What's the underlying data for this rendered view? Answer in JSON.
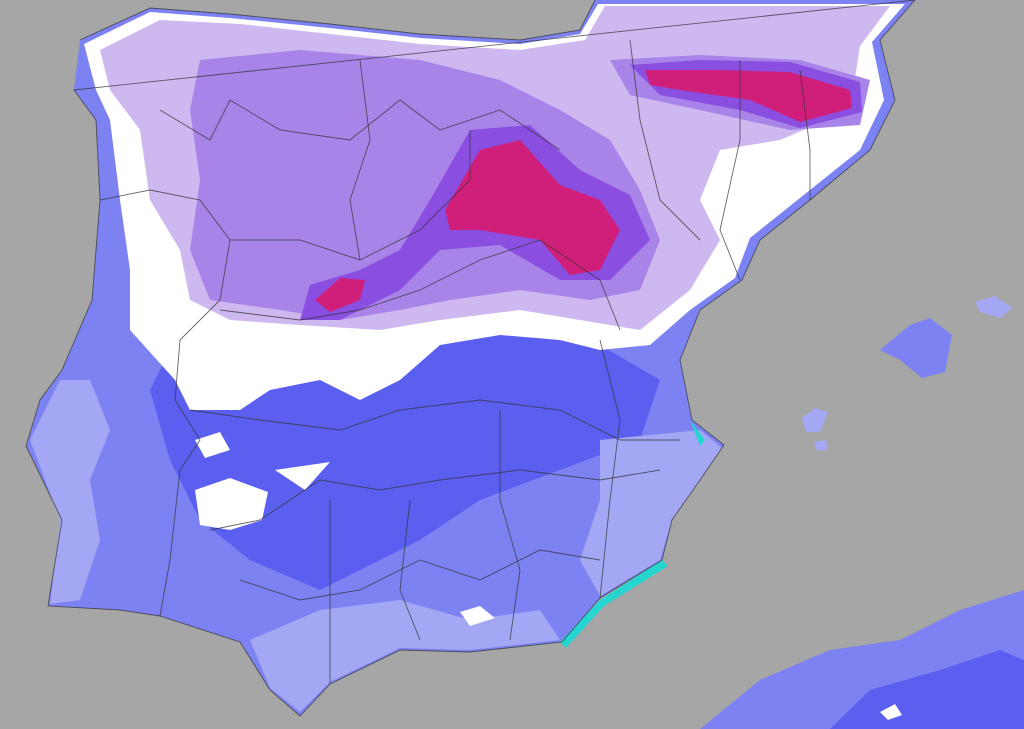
{
  "map": {
    "colors": {
      "sea": "#a6a6a6",
      "coldest_band": "#cf1f7a",
      "very_cold": "#8a4fe0",
      "cold_purple": "#a883e8",
      "lavender": "#cdb8f0",
      "near_zero": "#ffffff",
      "blue_dark": "#5a5ff0",
      "blue_mid": "#7c82f2",
      "blue_light": "#a3a7f4",
      "coast_cyan": "#25d6d0",
      "borders": "#333333"
    }
  }
}
